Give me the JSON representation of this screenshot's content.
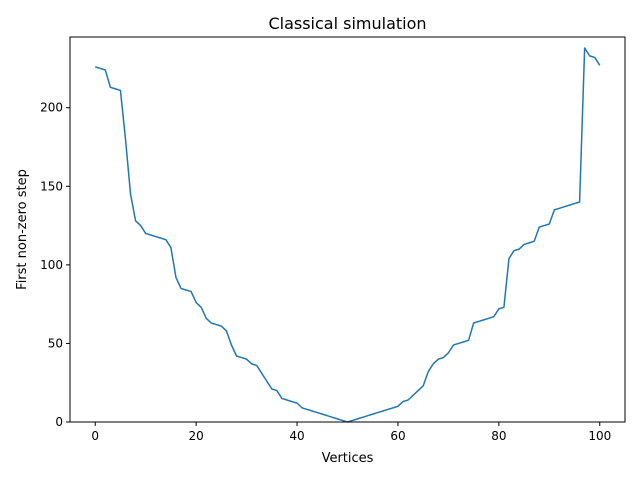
{
  "chart_data": {
    "type": "line",
    "title": "Classical simulation",
    "xlabel": "Vertices",
    "ylabel": "First non-zero step",
    "xlim": [
      -5,
      105
    ],
    "ylim": [
      0,
      245
    ],
    "grid": false,
    "xticks": [
      0,
      20,
      40,
      60,
      80,
      100
    ],
    "yticks": [
      0,
      50,
      100,
      150,
      200
    ],
    "x_tick_labels": [
      "0",
      "20",
      "40",
      "60",
      "80",
      "100"
    ],
    "y_tick_labels": [
      "0",
      "50",
      "100",
      "150",
      "200"
    ],
    "series": [
      {
        "color": "#1f77b4",
        "x": [
          0,
          1,
          2,
          3,
          4,
          5,
          6,
          7,
          8,
          9,
          10,
          11,
          12,
          13,
          14,
          15,
          16,
          17,
          18,
          19,
          20,
          21,
          22,
          23,
          24,
          25,
          26,
          27,
          28,
          29,
          30,
          31,
          32,
          33,
          34,
          35,
          36,
          37,
          38,
          39,
          40,
          41,
          42,
          43,
          44,
          45,
          46,
          47,
          48,
          49,
          50,
          51,
          52,
          53,
          54,
          55,
          56,
          57,
          58,
          59,
          60,
          61,
          62,
          63,
          64,
          65,
          66,
          67,
          68,
          69,
          70,
          71,
          72,
          73,
          74,
          75,
          76,
          77,
          78,
          79,
          80,
          81,
          82,
          83,
          84,
          85,
          86,
          87,
          88,
          89,
          90,
          91,
          92,
          93,
          94,
          95,
          96,
          97,
          98,
          99,
          100
        ],
        "y": [
          226,
          225,
          224,
          213,
          212,
          211,
          180,
          145,
          128,
          125,
          120,
          119,
          118,
          117,
          116,
          111,
          92,
          85,
          84,
          83,
          76,
          73,
          66,
          63,
          62,
          61,
          58,
          49,
          42,
          41,
          40,
          37,
          36,
          31,
          26,
          21,
          20,
          15,
          14,
          13,
          12,
          9,
          8,
          7,
          6,
          5,
          4,
          3,
          2,
          1,
          0,
          1,
          2,
          3,
          4,
          5,
          6,
          7,
          8,
          9,
          10,
          13,
          14,
          17,
          20,
          23,
          32,
          37,
          40,
          41,
          44,
          49,
          50,
          51,
          52,
          63,
          64,
          65,
          66,
          67,
          72,
          73,
          104,
          109,
          110,
          113,
          114,
          115,
          124,
          125,
          126,
          135,
          136,
          137,
          138,
          139,
          140,
          238,
          233,
          232,
          227
        ]
      }
    ]
  }
}
